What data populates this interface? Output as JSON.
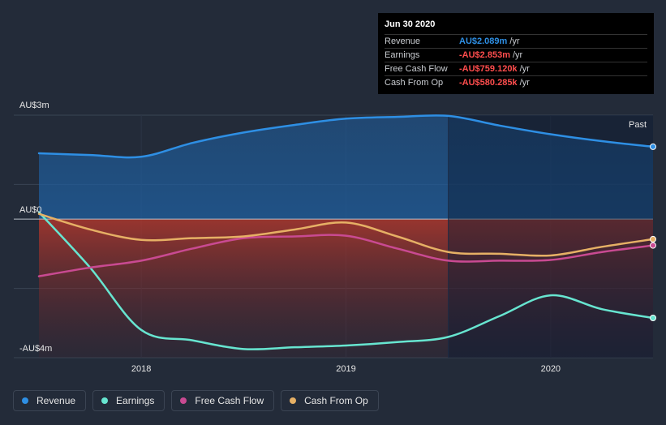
{
  "chart_data": {
    "type": "line",
    "x": [
      2017.5,
      2017.75,
      2018.0,
      2018.25,
      2018.5,
      2018.75,
      2019.0,
      2019.25,
      2019.5,
      2019.75,
      2020.0,
      2020.25,
      2020.5
    ],
    "series": [
      {
        "name": "Revenue",
        "color": "#2e8fe4",
        "values": [
          1.9,
          1.85,
          1.8,
          2.2,
          2.5,
          2.72,
          2.9,
          2.95,
          2.98,
          2.7,
          2.45,
          2.25,
          2.089
        ]
      },
      {
        "name": "Earnings",
        "color": "#67e5d0",
        "values": [
          0.2,
          -1.4,
          -3.2,
          -3.5,
          -3.75,
          -3.7,
          -3.65,
          -3.55,
          -3.4,
          -2.8,
          -2.2,
          -2.6,
          -2.853
        ]
      },
      {
        "name": "Free Cash Flow",
        "color": "#c94a92",
        "values": [
          -1.65,
          -1.4,
          -1.2,
          -0.85,
          -0.55,
          -0.5,
          -0.48,
          -0.85,
          -1.2,
          -1.2,
          -1.18,
          -0.95,
          -0.759
        ]
      },
      {
        "name": "Cash From Op",
        "color": "#e6b065",
        "values": [
          0.15,
          -0.3,
          -0.6,
          -0.55,
          -0.5,
          -0.3,
          -0.1,
          -0.5,
          -0.95,
          -1.0,
          -1.05,
          -0.8,
          -0.58
        ]
      }
    ],
    "ylim": [
      -4,
      3
    ],
    "xlim": [
      2017.5,
      2020.5
    ],
    "xticks": [
      2018,
      2019,
      2020
    ],
    "xtick_labels": [
      "2018",
      "2019",
      "2020"
    ],
    "ytick_labels": {
      "top": "AU$3m",
      "zero": "AU$0",
      "bottom": "-AU$4m"
    },
    "past_label": "Past",
    "past_start": 2019.5,
    "background": "#232b39"
  },
  "tooltip": {
    "date": "Jun 30 2020",
    "rows": [
      {
        "label": "Revenue",
        "value": "AU$2.089m",
        "unit": "/yr",
        "color": "#2e8fe4"
      },
      {
        "label": "Earnings",
        "value": "-AU$2.853m",
        "unit": "/yr",
        "color": "#ff4d4d"
      },
      {
        "label": "Free Cash Flow",
        "value": "-AU$759.120k",
        "unit": "/yr",
        "color": "#ff4d4d"
      },
      {
        "label": "Cash From Op",
        "value": "-AU$580.285k",
        "unit": "/yr",
        "color": "#ff4d4d"
      }
    ]
  },
  "legend": [
    {
      "label": "Revenue",
      "color": "#2e8fe4"
    },
    {
      "label": "Earnings",
      "color": "#67e5d0"
    },
    {
      "label": "Free Cash Flow",
      "color": "#c94a92"
    },
    {
      "label": "Cash From Op",
      "color": "#e6b065"
    }
  ]
}
